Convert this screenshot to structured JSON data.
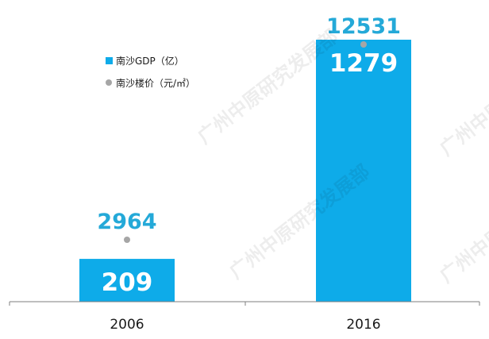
{
  "watermark": "广州中原研究发展部",
  "colors": {
    "bar": "#0eabe9",
    "bar_label": "#ffffff",
    "point": "#a6a6a6",
    "point_label": "#24a9d8",
    "axis": "#7f7f7f",
    "text": "#1a1a1a"
  },
  "chart_data": {
    "type": "bar",
    "categories": [
      "2006",
      "2016"
    ],
    "series": [
      {
        "name": "南沙GDP（亿）",
        "kind": "bar",
        "values": [
          209,
          1279
        ]
      },
      {
        "name": "南沙楼价（元/㎡）",
        "kind": "point",
        "values": [
          2964,
          12531
        ]
      }
    ],
    "legend_position": "top-left",
    "grid": false
  }
}
